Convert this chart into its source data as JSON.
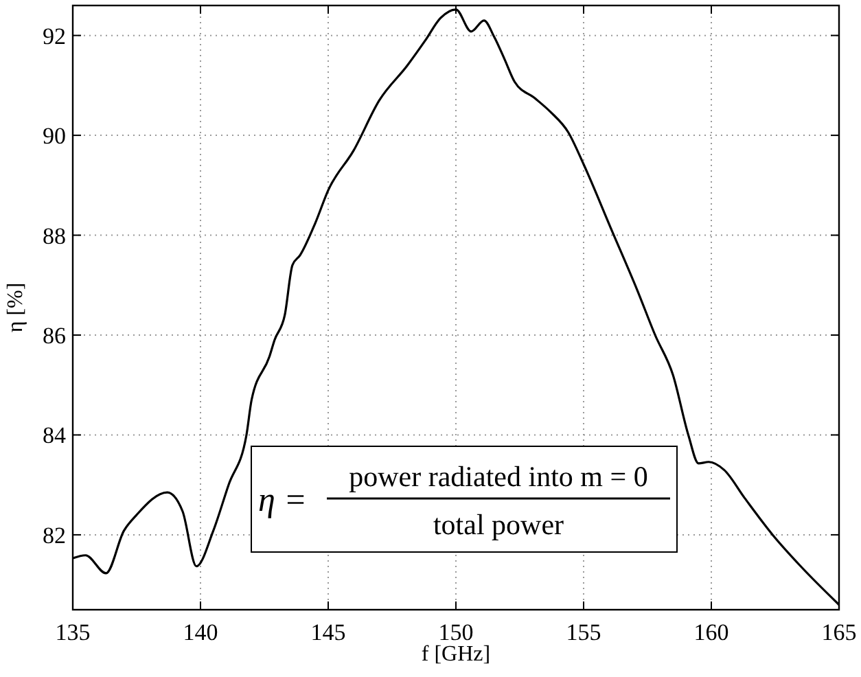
{
  "chart_data": {
    "type": "line",
    "xlabel": "f [GHz]",
    "ylabel": "η [%]",
    "xlim": [
      135,
      165
    ],
    "xticks": [
      135,
      140,
      145,
      150,
      155,
      160,
      165
    ],
    "ylim": [
      80.5,
      92.6
    ],
    "yticks": [
      82,
      84,
      86,
      88,
      90,
      92
    ],
    "grid": true,
    "line_style": "solid",
    "marker": "none",
    "annotations": [
      "η =",
      "power radiated into m = 0",
      "total power"
    ],
    "series": [
      {
        "color": "#000000",
        "x": [
          135,
          135.5,
          136.3,
          137,
          137.5,
          138.7,
          139.3,
          139.84,
          140.5,
          141.1,
          141.8,
          142,
          142.7,
          142.9,
          143.3,
          143.6,
          143.9,
          144.5,
          145,
          146,
          147,
          148.1,
          148.8,
          149.4,
          150,
          150.6,
          151.1,
          151.5,
          151.9,
          152.3,
          153.1,
          153.7,
          154.4,
          155,
          156.1,
          157.1,
          157.8,
          158.5,
          159.1,
          159.5,
          159.9,
          160.5,
          161.3,
          162.4,
          163.5,
          165
        ],
        "values": [
          81.53,
          81.59,
          81.23,
          82.08,
          82.4,
          82.85,
          82.47,
          81.37,
          82.08,
          83,
          84,
          84.7,
          85.57,
          85.9,
          86.4,
          87.4,
          87.6,
          88.25,
          88.9,
          89.7,
          90.7,
          91.4,
          91.9,
          92.35,
          92.52,
          92.08,
          92.3,
          91.97,
          91.53,
          91.07,
          90.74,
          90.47,
          90.06,
          89.42,
          88.1,
          86.9,
          86,
          85.2,
          84,
          83.43,
          83.46,
          83.3,
          82.74,
          82,
          81.37,
          80.6
        ]
      }
    ]
  }
}
